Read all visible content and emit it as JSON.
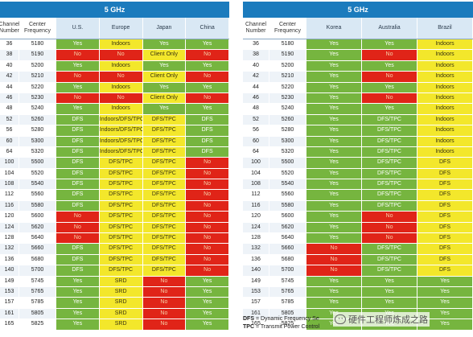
{
  "left": {
    "title": "5 GHz",
    "headers": [
      "Channel Number",
      "Center Frequency",
      "U.S.",
      "Europe",
      "Japan",
      "China"
    ],
    "rows": [
      {
        "ch": "36",
        "freq": "5180",
        "cells": [
          [
            "Yes",
            "g"
          ],
          [
            "Indoors",
            "y"
          ],
          [
            "Yes",
            "g"
          ],
          [
            "Yes",
            "g"
          ]
        ]
      },
      {
        "ch": "38",
        "freq": "5190",
        "cells": [
          [
            "No",
            "r"
          ],
          [
            "No",
            "r"
          ],
          [
            "Client Only",
            "y"
          ],
          [
            "No",
            "r"
          ]
        ]
      },
      {
        "ch": "40",
        "freq": "5200",
        "cells": [
          [
            "Yes",
            "g"
          ],
          [
            "Indoors",
            "y"
          ],
          [
            "Yes",
            "g"
          ],
          [
            "Yes",
            "g"
          ]
        ]
      },
      {
        "ch": "42",
        "freq": "5210",
        "cells": [
          [
            "No",
            "r"
          ],
          [
            "No",
            "r"
          ],
          [
            "Client Only",
            "y"
          ],
          [
            "No",
            "r"
          ]
        ]
      },
      {
        "ch": "44",
        "freq": "5220",
        "cells": [
          [
            "Yes",
            "g"
          ],
          [
            "Indoors",
            "y"
          ],
          [
            "Yes",
            "g"
          ],
          [
            "Yes",
            "g"
          ]
        ]
      },
      {
        "ch": "46",
        "freq": "5230",
        "cells": [
          [
            "No",
            "r"
          ],
          [
            "No",
            "r"
          ],
          [
            "Client Only",
            "y"
          ],
          [
            "No",
            "r"
          ]
        ]
      },
      {
        "ch": "48",
        "freq": "5240",
        "cells": [
          [
            "Yes",
            "g"
          ],
          [
            "Indoors",
            "y"
          ],
          [
            "Yes",
            "g"
          ],
          [
            "Yes",
            "g"
          ]
        ]
      },
      {
        "ch": "52",
        "freq": "5260",
        "cells": [
          [
            "DFS",
            "g"
          ],
          [
            "Indoors/DFS/TPC",
            "y"
          ],
          [
            "DFS/TPC",
            "y"
          ],
          [
            "DFS",
            "g"
          ]
        ]
      },
      {
        "ch": "56",
        "freq": "5280",
        "cells": [
          [
            "DFS",
            "g"
          ],
          [
            "Indoors/DFS/TPC",
            "y"
          ],
          [
            "DFS/TPC",
            "y"
          ],
          [
            "DFS",
            "g"
          ]
        ]
      },
      {
        "ch": "60",
        "freq": "5300",
        "cells": [
          [
            "DFS",
            "g"
          ],
          [
            "Indoors/DFS/TPC",
            "y"
          ],
          [
            "DFS/TPC",
            "y"
          ],
          [
            "DFS",
            "g"
          ]
        ]
      },
      {
        "ch": "64",
        "freq": "5320",
        "cells": [
          [
            "DFS",
            "g"
          ],
          [
            "Indoors/DFS/TPC",
            "y"
          ],
          [
            "DFS/TPC",
            "y"
          ],
          [
            "DFS",
            "g"
          ]
        ]
      },
      {
        "ch": "100",
        "freq": "5500",
        "cells": [
          [
            "DFS",
            "g"
          ],
          [
            "DFS/TPC",
            "y"
          ],
          [
            "DFS/TPC",
            "y"
          ],
          [
            "No",
            "r"
          ]
        ]
      },
      {
        "ch": "104",
        "freq": "5520",
        "cells": [
          [
            "DFS",
            "g"
          ],
          [
            "DFS/TPC",
            "y"
          ],
          [
            "DFS/TPC",
            "y"
          ],
          [
            "No",
            "r"
          ]
        ]
      },
      {
        "ch": "108",
        "freq": "5540",
        "cells": [
          [
            "DFS",
            "g"
          ],
          [
            "DFS/TPC",
            "y"
          ],
          [
            "DFS/TPC",
            "y"
          ],
          [
            "No",
            "r"
          ]
        ]
      },
      {
        "ch": "112",
        "freq": "5560",
        "cells": [
          [
            "DFS",
            "g"
          ],
          [
            "DFS/TPC",
            "y"
          ],
          [
            "DFS/TPC",
            "y"
          ],
          [
            "No",
            "r"
          ]
        ]
      },
      {
        "ch": "116",
        "freq": "5580",
        "cells": [
          [
            "DFS",
            "g"
          ],
          [
            "DFS/TPC",
            "y"
          ],
          [
            "DFS/TPC",
            "y"
          ],
          [
            "No",
            "r"
          ]
        ]
      },
      {
        "ch": "120",
        "freq": "5600",
        "cells": [
          [
            "No",
            "r"
          ],
          [
            "DFS/TPC",
            "y"
          ],
          [
            "DFS/TPC",
            "y"
          ],
          [
            "No",
            "r"
          ]
        ]
      },
      {
        "ch": "124",
        "freq": "5620",
        "cells": [
          [
            "No",
            "r"
          ],
          [
            "DFS/TPC",
            "y"
          ],
          [
            "DFS/TPC",
            "y"
          ],
          [
            "No",
            "r"
          ]
        ]
      },
      {
        "ch": "128",
        "freq": "5640",
        "cells": [
          [
            "No",
            "r"
          ],
          [
            "DFS/TPC",
            "y"
          ],
          [
            "DFS/TPC",
            "y"
          ],
          [
            "No",
            "r"
          ]
        ]
      },
      {
        "ch": "132",
        "freq": "5660",
        "cells": [
          [
            "DFS",
            "g"
          ],
          [
            "DFS/TPC",
            "y"
          ],
          [
            "DFS/TPC",
            "y"
          ],
          [
            "No",
            "r"
          ]
        ]
      },
      {
        "ch": "136",
        "freq": "5680",
        "cells": [
          [
            "DFS",
            "g"
          ],
          [
            "DFS/TPC",
            "y"
          ],
          [
            "DFS/TPC",
            "y"
          ],
          [
            "No",
            "r"
          ]
        ]
      },
      {
        "ch": "140",
        "freq": "5700",
        "cells": [
          [
            "DFS",
            "g"
          ],
          [
            "DFS/TPC",
            "y"
          ],
          [
            "DFS/TPC",
            "y"
          ],
          [
            "No",
            "r"
          ]
        ]
      },
      {
        "ch": "149",
        "freq": "5745",
        "cells": [
          [
            "Yes",
            "g"
          ],
          [
            "SRD",
            "y"
          ],
          [
            "No",
            "r"
          ],
          [
            "Yes",
            "g"
          ]
        ]
      },
      {
        "ch": "153",
        "freq": "5765",
        "cells": [
          [
            "Yes",
            "g"
          ],
          [
            "SRD",
            "y"
          ],
          [
            "No",
            "r"
          ],
          [
            "Yes",
            "g"
          ]
        ]
      },
      {
        "ch": "157",
        "freq": "5785",
        "cells": [
          [
            "Yes",
            "g"
          ],
          [
            "SRD",
            "y"
          ],
          [
            "No",
            "r"
          ],
          [
            "Yes",
            "g"
          ]
        ]
      },
      {
        "ch": "161",
        "freq": "5805",
        "cells": [
          [
            "Yes",
            "g"
          ],
          [
            "SRD",
            "y"
          ],
          [
            "No",
            "r"
          ],
          [
            "Yes",
            "g"
          ]
        ]
      },
      {
        "ch": "165",
        "freq": "5825",
        "cells": [
          [
            "Yes",
            "g"
          ],
          [
            "SRD",
            "y"
          ],
          [
            "No",
            "r"
          ],
          [
            "Yes",
            "g"
          ]
        ]
      }
    ]
  },
  "right": {
    "title": "5 GHz",
    "headers": [
      "Channel Number",
      "Center Frequency",
      "Korea",
      "Australia",
      "Brazil"
    ],
    "rows": [
      {
        "ch": "36",
        "freq": "5180",
        "cells": [
          [
            "Yes",
            "g"
          ],
          [
            "Yes",
            "g"
          ],
          [
            "Indoors",
            "y"
          ]
        ]
      },
      {
        "ch": "38",
        "freq": "5190",
        "cells": [
          [
            "Yes",
            "g"
          ],
          [
            "No",
            "r"
          ],
          [
            "Indoors",
            "y"
          ]
        ]
      },
      {
        "ch": "40",
        "freq": "5200",
        "cells": [
          [
            "Yes",
            "g"
          ],
          [
            "Yes",
            "g"
          ],
          [
            "Indoors",
            "y"
          ]
        ]
      },
      {
        "ch": "42",
        "freq": "5210",
        "cells": [
          [
            "Yes",
            "g"
          ],
          [
            "No",
            "r"
          ],
          [
            "Indoors",
            "y"
          ]
        ]
      },
      {
        "ch": "44",
        "freq": "5220",
        "cells": [
          [
            "Yes",
            "g"
          ],
          [
            "Yes",
            "g"
          ],
          [
            "Indoors",
            "y"
          ]
        ]
      },
      {
        "ch": "46",
        "freq": "5230",
        "cells": [
          [
            "Yes",
            "g"
          ],
          [
            "No",
            "r"
          ],
          [
            "Indoors",
            "y"
          ]
        ]
      },
      {
        "ch": "48",
        "freq": "5240",
        "cells": [
          [
            "Yes",
            "g"
          ],
          [
            "Yes",
            "g"
          ],
          [
            "Indoors",
            "y"
          ]
        ]
      },
      {
        "ch": "52",
        "freq": "5260",
        "cells": [
          [
            "Yes",
            "g"
          ],
          [
            "DFS/TPC",
            "g"
          ],
          [
            "Indoors",
            "y"
          ]
        ]
      },
      {
        "ch": "56",
        "freq": "5280",
        "cells": [
          [
            "Yes",
            "g"
          ],
          [
            "DFS/TPC",
            "g"
          ],
          [
            "Indoors",
            "y"
          ]
        ]
      },
      {
        "ch": "60",
        "freq": "5300",
        "cells": [
          [
            "Yes",
            "g"
          ],
          [
            "DFS/TPC",
            "g"
          ],
          [
            "Indoors",
            "y"
          ]
        ]
      },
      {
        "ch": "64",
        "freq": "5320",
        "cells": [
          [
            "Yes",
            "g"
          ],
          [
            "DFS/TPC",
            "g"
          ],
          [
            "Indoors",
            "y"
          ]
        ]
      },
      {
        "ch": "100",
        "freq": "5500",
        "cells": [
          [
            "Yes",
            "g"
          ],
          [
            "DFS/TPC",
            "g"
          ],
          [
            "DFS",
            "y"
          ]
        ]
      },
      {
        "ch": "104",
        "freq": "5520",
        "cells": [
          [
            "Yes",
            "g"
          ],
          [
            "DFS/TPC",
            "g"
          ],
          [
            "DFS",
            "y"
          ]
        ]
      },
      {
        "ch": "108",
        "freq": "5540",
        "cells": [
          [
            "Yes",
            "g"
          ],
          [
            "DFS/TPC",
            "g"
          ],
          [
            "DFS",
            "y"
          ]
        ]
      },
      {
        "ch": "112",
        "freq": "5560",
        "cells": [
          [
            "Yes",
            "g"
          ],
          [
            "DFS/TPC",
            "g"
          ],
          [
            "DFS",
            "y"
          ]
        ]
      },
      {
        "ch": "116",
        "freq": "5580",
        "cells": [
          [
            "Yes",
            "g"
          ],
          [
            "DFS/TPC",
            "g"
          ],
          [
            "DFS",
            "y"
          ]
        ]
      },
      {
        "ch": "120",
        "freq": "5600",
        "cells": [
          [
            "Yes",
            "g"
          ],
          [
            "No",
            "r"
          ],
          [
            "DFS",
            "y"
          ]
        ]
      },
      {
        "ch": "124",
        "freq": "5620",
        "cells": [
          [
            "Yes",
            "g"
          ],
          [
            "No",
            "r"
          ],
          [
            "DFS",
            "y"
          ]
        ]
      },
      {
        "ch": "128",
        "freq": "5640",
        "cells": [
          [
            "Yes",
            "g"
          ],
          [
            "No",
            "r"
          ],
          [
            "DFS",
            "y"
          ]
        ]
      },
      {
        "ch": "132",
        "freq": "5660",
        "cells": [
          [
            "No",
            "r"
          ],
          [
            "DFS/TPC",
            "g"
          ],
          [
            "DFS",
            "y"
          ]
        ]
      },
      {
        "ch": "136",
        "freq": "5680",
        "cells": [
          [
            "No",
            "r"
          ],
          [
            "DFS/TPC",
            "g"
          ],
          [
            "DFS",
            "y"
          ]
        ]
      },
      {
        "ch": "140",
        "freq": "5700",
        "cells": [
          [
            "No",
            "r"
          ],
          [
            "DFS/TPC",
            "g"
          ],
          [
            "DFS",
            "y"
          ]
        ]
      },
      {
        "ch": "149",
        "freq": "5745",
        "cells": [
          [
            "Yes",
            "g"
          ],
          [
            "Yes",
            "g"
          ],
          [
            "Yes",
            "g"
          ]
        ]
      },
      {
        "ch": "153",
        "freq": "5765",
        "cells": [
          [
            "Yes",
            "g"
          ],
          [
            "Yes",
            "g"
          ],
          [
            "Yes",
            "g"
          ]
        ]
      },
      {
        "ch": "157",
        "freq": "5785",
        "cells": [
          [
            "Yes",
            "g"
          ],
          [
            "Yes",
            "g"
          ],
          [
            "Yes",
            "g"
          ]
        ]
      },
      {
        "ch": "161",
        "freq": "5805",
        "cells": [
          [
            "Yes",
            "g"
          ],
          [
            "Yes",
            "g"
          ],
          [
            "Yes",
            "g"
          ]
        ]
      },
      {
        "ch": "165",
        "freq": "5825",
        "cells": [
          [
            "Yes",
            "g"
          ],
          [
            "Yes",
            "g"
          ],
          [
            "Yes",
            "g"
          ]
        ]
      }
    ]
  },
  "legend": {
    "dfs_abbr": "DFS",
    "dfs_text": " = Dynamic Frequency Se",
    "tpc_abbr": "TPC",
    "tpc_text": " = Transmit Power Control"
  },
  "watermark": {
    "icon": "wechat-icon",
    "text": "硬件工程师炼成之路"
  },
  "colors": {
    "header": "#1b7bbd",
    "green": "#76b53f",
    "yellow": "#f3e72b",
    "red": "#e02418"
  }
}
